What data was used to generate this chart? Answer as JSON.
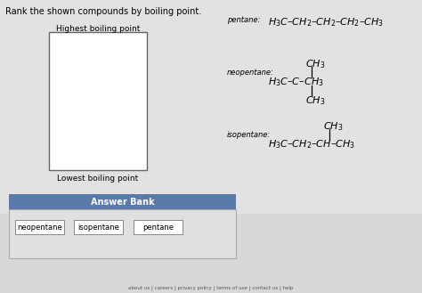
{
  "title": "Rank the shown compounds by boiling point.",
  "bg_color": "#d8d8d8",
  "upper_bg": "#e8e8e8",
  "box_bg": "#ffffff",
  "highest_label": "Highest boiling point",
  "lowest_label": "Lowest boiling point",
  "answer_bank_label": "Answer Bank",
  "answer_bank_header_color": "#5a7aaa",
  "answer_bank_body_bg": "#e0e0e0",
  "answer_bank_border": "#aaaaaa",
  "answer_items": [
    "neopentane",
    "isopentane",
    "pentane"
  ],
  "pentane_label": "pentane:",
  "neopentane_label": "neopentane:",
  "isopentane_label": "isopentane:",
  "footer_items": [
    "about us",
    "careers",
    "privacy policy",
    "terms of use",
    "contact us",
    "help"
  ],
  "title_fontsize": 7.0,
  "label_fontsize": 6.5,
  "formula_fontsize": 8.0,
  "footer_fontsize": 4.5
}
